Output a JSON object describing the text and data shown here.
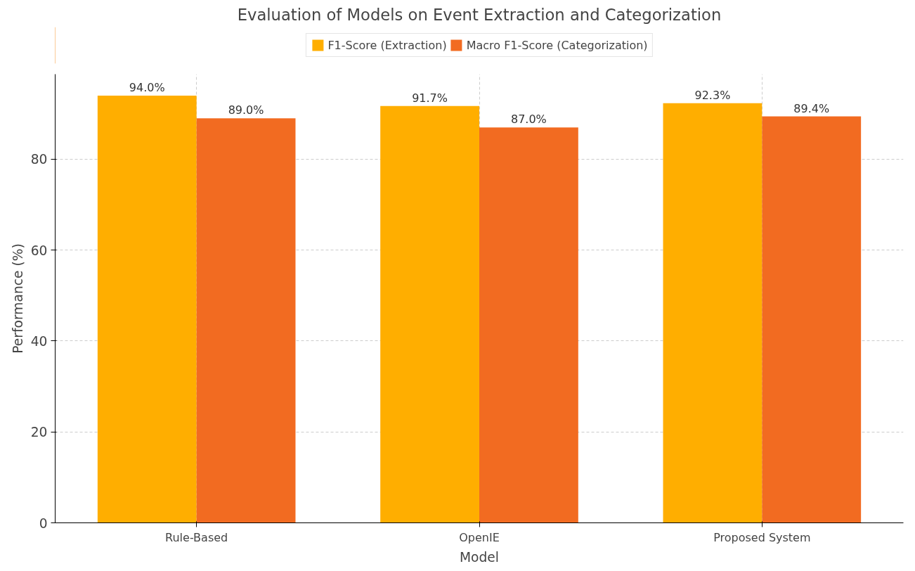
{
  "chart_data": {
    "type": "bar",
    "title": "Evaluation of Models on Event Extraction and Categorization",
    "xlabel": "Model",
    "ylabel": "Performance (%)",
    "categories": [
      "Rule-Based",
      "OpenIE",
      "Proposed System"
    ],
    "series": [
      {
        "name": "F1-Score (Extraction)",
        "color": "#ffae00",
        "values": [
          94.0,
          91.7,
          92.3
        ],
        "value_labels": [
          "94.0%",
          "91.7%",
          "92.3%"
        ]
      },
      {
        "name": "Macro F1-Score (Categorization)",
        "color": "#f26b21",
        "values": [
          89.0,
          87.0,
          89.4
        ],
        "value_labels": [
          "89.0%",
          "87.0%",
          "89.4%"
        ]
      }
    ],
    "ylim": [
      0,
      98.7
    ],
    "yticks": [
      0,
      20,
      40,
      60,
      80
    ],
    "grid": true,
    "legend": "top"
  }
}
